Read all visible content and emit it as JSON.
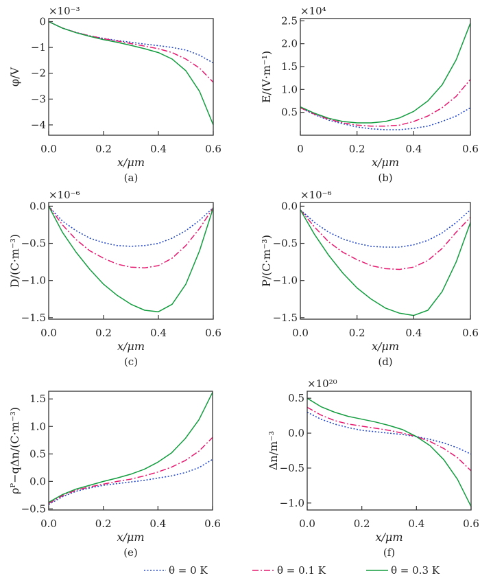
{
  "colors": {
    "theta0": "#2448c8",
    "theta01": "#e6186e",
    "theta03": "#129c3e"
  },
  "legend": [
    {
      "label": "θ = 0 K",
      "style": "dotted",
      "color": "#2448c8"
    },
    {
      "label": "θ = 0.1 K",
      "style": "dash-dot",
      "color": "#e6186e"
    },
    {
      "label": "θ = 0.3 K",
      "style": "solid",
      "color": "#129c3e"
    }
  ],
  "chart_data": [
    {
      "type": "line",
      "caption": "(a)",
      "xlabel": "x/μm",
      "ylabel": "φ/V",
      "multiplier": "×10⁻³",
      "xlim": [
        0,
        0.6
      ],
      "ylim": [
        -4.4,
        0.12
      ],
      "xticks": [
        "0.0",
        "0.2",
        "0.4",
        "0.6"
      ],
      "xtick_values": [
        0,
        0.2,
        0.4,
        0.6
      ],
      "yticks": [
        "0",
        "−1",
        "−2",
        "−3",
        "−4"
      ],
      "ytick_values": [
        0,
        -1,
        -2,
        -3,
        -4
      ],
      "x": [
        0,
        0.05,
        0.1,
        0.15,
        0.2,
        0.25,
        0.3,
        0.35,
        0.4,
        0.45,
        0.5,
        0.55,
        0.6
      ],
      "series": [
        {
          "name": "θ = 0 K",
          "values": [
            0,
            -0.25,
            -0.42,
            -0.55,
            -0.65,
            -0.73,
            -0.8,
            -0.87,
            -0.93,
            -1.0,
            -1.1,
            -1.3,
            -1.6
          ]
        },
        {
          "name": "θ = 0.1 K",
          "values": [
            0,
            -0.25,
            -0.42,
            -0.55,
            -0.66,
            -0.75,
            -0.85,
            -0.95,
            -1.05,
            -1.2,
            -1.45,
            -1.8,
            -2.35
          ]
        },
        {
          "name": "θ = 0.3 K",
          "values": [
            0,
            -0.25,
            -0.43,
            -0.57,
            -0.7,
            -0.8,
            -0.92,
            -1.05,
            -1.2,
            -1.45,
            -1.9,
            -2.7,
            -4.0
          ]
        }
      ]
    },
    {
      "type": "line",
      "caption": "(b)",
      "xlabel": "x/μm",
      "ylabel": "E/(V·m⁻¹)",
      "multiplier": "×10⁴",
      "xlim": [
        0,
        0.6
      ],
      "ylim": [
        0,
        2.55
      ],
      "xticks": [
        "0",
        "0.2",
        "0.4",
        "0.6"
      ],
      "xtick_values": [
        0,
        0.2,
        0.4,
        0.6
      ],
      "yticks": [
        "0.5",
        "1.0",
        "1.5",
        "2.0",
        "2.5"
      ],
      "ytick_values": [
        0.5,
        1.0,
        1.5,
        2.0,
        2.5
      ],
      "x": [
        0,
        0.05,
        0.1,
        0.15,
        0.2,
        0.25,
        0.3,
        0.35,
        0.4,
        0.45,
        0.5,
        0.55,
        0.6
      ],
      "series": [
        {
          "name": "θ = 0 K",
          "values": [
            0.6,
            0.45,
            0.33,
            0.25,
            0.18,
            0.14,
            0.12,
            0.12,
            0.15,
            0.2,
            0.3,
            0.42,
            0.6
          ]
        },
        {
          "name": "θ = 0.1 K",
          "values": [
            0.6,
            0.46,
            0.35,
            0.27,
            0.22,
            0.2,
            0.2,
            0.22,
            0.3,
            0.42,
            0.6,
            0.85,
            1.22
          ]
        },
        {
          "name": "θ = 0.3 K",
          "values": [
            0.62,
            0.48,
            0.37,
            0.3,
            0.27,
            0.27,
            0.3,
            0.38,
            0.52,
            0.75,
            1.1,
            1.65,
            2.45
          ]
        }
      ]
    },
    {
      "type": "line",
      "caption": "(c)",
      "xlabel": "x/μm",
      "ylabel": "D/(C·m⁻³)",
      "multiplier": "×10⁻⁶",
      "xlim": [
        0,
        0.6
      ],
      "ylim": [
        -1.52,
        0.05
      ],
      "xticks": [
        "0.0",
        "0.2",
        "0.4",
        "0.6"
      ],
      "xtick_values": [
        0,
        0.2,
        0.4,
        0.6
      ],
      "yticks": [
        "0.0",
        "−0.5",
        "−1.0",
        "−1.5"
      ],
      "ytick_values": [
        0,
        -0.5,
        -1.0,
        -1.5
      ],
      "x": [
        0,
        0.05,
        0.1,
        0.15,
        0.2,
        0.25,
        0.3,
        0.35,
        0.4,
        0.45,
        0.5,
        0.55,
        0.6
      ],
      "series": [
        {
          "name": "θ = 0 K",
          "values": [
            0,
            -0.2,
            -0.33,
            -0.43,
            -0.49,
            -0.53,
            -0.54,
            -0.53,
            -0.5,
            -0.43,
            -0.33,
            -0.19,
            -0.02
          ]
        },
        {
          "name": "θ = 0.1 K",
          "values": [
            0,
            -0.25,
            -0.45,
            -0.6,
            -0.7,
            -0.78,
            -0.82,
            -0.83,
            -0.8,
            -0.7,
            -0.53,
            -0.3,
            -0.02
          ]
        },
        {
          "name": "θ = 0.3 K",
          "values": [
            0,
            -0.35,
            -0.62,
            -0.85,
            -1.05,
            -1.2,
            -1.32,
            -1.4,
            -1.42,
            -1.32,
            -1.05,
            -0.6,
            -0.02
          ]
        }
      ]
    },
    {
      "type": "line",
      "caption": "(d)",
      "xlabel": "x/μm",
      "ylabel": "P/(C·m⁻³)",
      "multiplier": "×10⁻⁶",
      "xlim": [
        0,
        0.6
      ],
      "ylim": [
        -1.52,
        0.05
      ],
      "xticks": [
        "0.0",
        "0.2",
        "0.4",
        "0.6"
      ],
      "xtick_values": [
        0,
        0.2,
        0.4,
        0.6
      ],
      "yticks": [
        "0.0",
        "−0.5",
        "−1.0",
        "−1.5"
      ],
      "ytick_values": [
        0,
        -0.5,
        -1.0,
        -1.5
      ],
      "x": [
        0,
        0.05,
        0.1,
        0.15,
        0.2,
        0.25,
        0.3,
        0.35,
        0.4,
        0.45,
        0.5,
        0.55,
        0.6
      ],
      "series": [
        {
          "name": "θ = 0 K",
          "values": [
            -0.05,
            -0.22,
            -0.35,
            -0.44,
            -0.5,
            -0.54,
            -0.55,
            -0.55,
            -0.52,
            -0.46,
            -0.36,
            -0.22,
            -0.05
          ]
        },
        {
          "name": "θ = 0.1 K",
          "values": [
            -0.05,
            -0.28,
            -0.48,
            -0.62,
            -0.72,
            -0.8,
            -0.84,
            -0.85,
            -0.82,
            -0.73,
            -0.57,
            -0.35,
            -0.15
          ]
        },
        {
          "name": "θ = 0.3 K",
          "values": [
            -0.05,
            -0.38,
            -0.66,
            -0.9,
            -1.1,
            -1.25,
            -1.37,
            -1.44,
            -1.47,
            -1.4,
            -1.15,
            -0.75,
            -0.22
          ]
        }
      ]
    },
    {
      "type": "line",
      "caption": "(e)",
      "xlabel": "x/μm",
      "ylabel": "ρᴾ−qΔn/(C·m⁻³)",
      "multiplier": "",
      "xlim": [
        0,
        0.6
      ],
      "ylim": [
        -0.52,
        1.64
      ],
      "xticks": [
        "0.0",
        "0.2",
        "0.4",
        "0.6"
      ],
      "xtick_values": [
        0,
        0.2,
        0.4,
        0.6
      ],
      "yticks": [
        "−0.5",
        "0.0",
        "0.5",
        "1.0",
        "1.5"
      ],
      "ytick_values": [
        -0.5,
        0,
        0.5,
        1.0,
        1.5
      ],
      "x": [
        0,
        0.05,
        0.1,
        0.15,
        0.2,
        0.25,
        0.3,
        0.35,
        0.4,
        0.45,
        0.5,
        0.55,
        0.6
      ],
      "series": [
        {
          "name": "θ = 0 K",
          "values": [
            -0.42,
            -0.28,
            -0.18,
            -0.12,
            -0.07,
            -0.04,
            -0.01,
            0.02,
            0.06,
            0.1,
            0.16,
            0.25,
            0.4
          ]
        },
        {
          "name": "θ = 0.1 K",
          "values": [
            -0.4,
            -0.26,
            -0.16,
            -0.1,
            -0.05,
            0,
            0.04,
            0.1,
            0.17,
            0.26,
            0.38,
            0.55,
            0.8
          ]
        },
        {
          "name": "θ = 0.3 K",
          "values": [
            -0.38,
            -0.24,
            -0.14,
            -0.07,
            0,
            0.06,
            0.13,
            0.22,
            0.35,
            0.52,
            0.78,
            1.12,
            1.62
          ]
        }
      ]
    },
    {
      "type": "line",
      "caption": "(f)",
      "xlabel": "x/μm",
      "ylabel": "Δn/m⁻³",
      "multiplier": "×10²⁰",
      "xlim": [
        0,
        0.6
      ],
      "ylim": [
        -1.1,
        0.6
      ],
      "xticks": [
        "0.0",
        "0.2",
        "0.4",
        "0.6"
      ],
      "xtick_values": [
        0,
        0.2,
        0.4,
        0.6
      ],
      "yticks": [
        "0.5",
        "0.0",
        "−0.5",
        "−1.0"
      ],
      "ytick_values": [
        0.5,
        0,
        -0.5,
        -1.0
      ],
      "x": [
        0,
        0.05,
        0.1,
        0.15,
        0.2,
        0.25,
        0.3,
        0.35,
        0.4,
        0.45,
        0.5,
        0.55,
        0.6
      ],
      "series": [
        {
          "name": "θ = 0 K",
          "values": [
            0.3,
            0.2,
            0.13,
            0.08,
            0.04,
            0.02,
            0,
            -0.02,
            -0.05,
            -0.09,
            -0.14,
            -0.21,
            -0.3
          ]
        },
        {
          "name": "θ = 0.1 K",
          "values": [
            0.37,
            0.26,
            0.18,
            0.13,
            0.1,
            0.07,
            0.04,
            0.0,
            -0.05,
            -0.12,
            -0.22,
            -0.35,
            -0.54
          ]
        },
        {
          "name": "θ = 0.3 K",
          "values": [
            0.5,
            0.38,
            0.3,
            0.24,
            0.2,
            0.16,
            0.11,
            0.05,
            -0.05,
            -0.18,
            -0.38,
            -0.66,
            -1.05
          ]
        }
      ]
    }
  ]
}
